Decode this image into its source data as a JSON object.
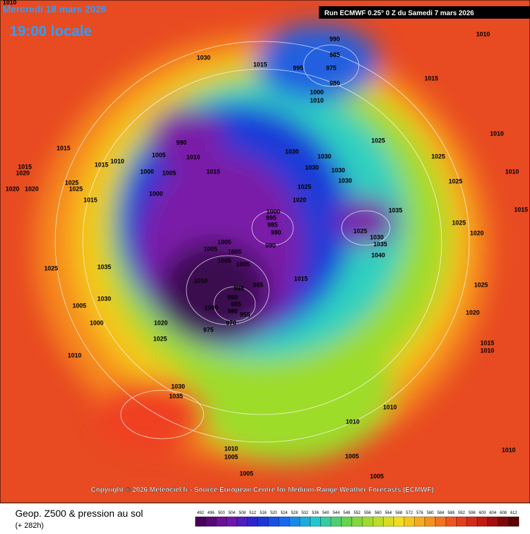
{
  "header": {
    "date": "Mercredi 18 mars 2026",
    "time": "19:00 locale",
    "run": "Run ECMWF 0.25° 0 Z du Samedi 7 mars 2026"
  },
  "copyright": "Copyright © 2026 Meteociel.fr - Source European Centre for Medium-Range Weather Forecasts (ECMWF)",
  "footer": {
    "title": "Geop. Z500 & pression au sol",
    "lead": "(+ 282h)"
  },
  "colorbar": {
    "labels": [
      "492",
      "496",
      "500",
      "504",
      "508",
      "512",
      "516",
      "520",
      "524",
      "528",
      "532",
      "536",
      "540",
      "544",
      "548",
      "552",
      "556",
      "560",
      "564",
      "568",
      "572",
      "576",
      "580",
      "584",
      "588",
      "592",
      "596",
      "600",
      "604",
      "608",
      "612"
    ]
  },
  "pressure_labels": [
    "1010",
    "1010",
    "1030",
    "1015",
    "995",
    "990",
    "985",
    "975",
    "980",
    "1000",
    "1010",
    "1015",
    "990",
    "1005",
    "1010",
    "1015",
    "1015",
    "1010",
    "1015",
    "1020",
    "1020",
    "1020",
    "1025",
    "1025",
    "1000",
    "1005",
    "1015",
    "1030",
    "1030",
    "1030",
    "1030",
    "1030",
    "1025",
    "1025",
    "1010",
    "1025",
    "1020",
    "1000",
    "1015",
    "1035",
    "1025",
    "1030",
    "1035",
    "1040",
    "1000",
    "995",
    "985",
    "980",
    "990",
    "1005",
    "1005",
    "1005",
    "1005",
    "1005",
    "1035",
    "1025",
    "1010",
    "995",
    "985",
    "1015",
    "990",
    "985",
    "980",
    "1000",
    "975",
    "970",
    "955",
    "1030",
    "1005",
    "1000",
    "1020",
    "1025",
    "1010",
    "1030",
    "1035",
    "1010",
    "1010",
    "1005",
    "1010",
    "1005",
    "1005",
    "1005",
    "1010",
    "1010",
    "1015",
    "1020",
    "1025",
    "1020",
    "1025",
    "1025",
    "1010",
    "1015"
  ]
}
